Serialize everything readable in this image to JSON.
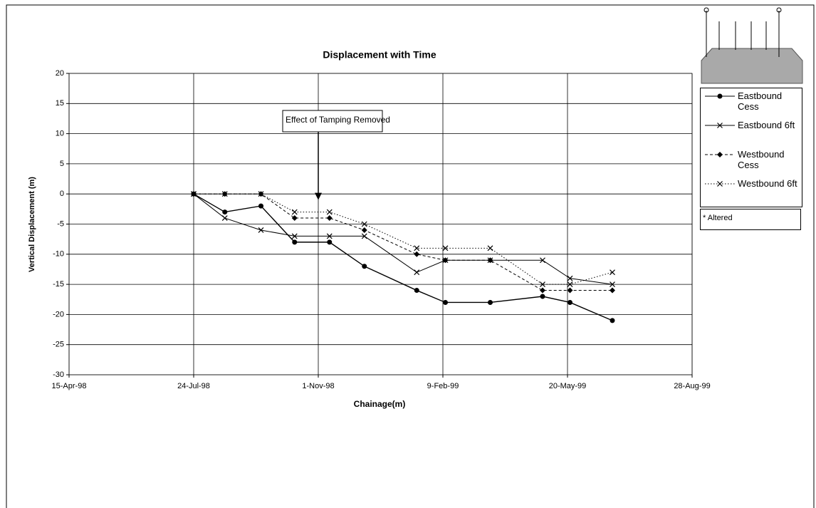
{
  "chart_data": {
    "type": "line",
    "title": "Displacement with Time",
    "x_label": "Chainage(m)",
    "y_label": "Vertical Displacement (m)",
    "x": [
      "1998-07-24",
      "1998-08-18",
      "1998-09-16",
      "1998-10-13",
      "1998-11-10",
      "1998-12-08",
      "1999-01-19",
      "1999-02-11",
      "1999-03-19",
      "1999-04-30",
      "1999-05-22",
      "1999-06-25"
    ],
    "series": [
      {
        "name": "Eastbound Cess",
        "color": "#000000",
        "dash": "solid",
        "marker": "circle",
        "values": [
          0,
          -3,
          -2,
          -8,
          -8,
          -12,
          -16,
          -18,
          -18,
          -17,
          -18,
          -21
        ]
      },
      {
        "name": "Eastbound 6ft",
        "color": "#000000",
        "dash": "solid",
        "marker": "x",
        "values": [
          0,
          -4,
          -6,
          -7,
          -7,
          -7,
          -13,
          -11,
          -11,
          -11,
          -14,
          -15
        ]
      },
      {
        "name": "Westbound Cess",
        "color": "#000000",
        "dash": "dashed",
        "marker": "diamond",
        "values": [
          0,
          0,
          0,
          -4,
          -4,
          -6,
          -10,
          -11,
          -11,
          -16,
          -16,
          -16
        ]
      },
      {
        "name": "Westbound 6ft",
        "color": "#000000",
        "dash": "dotted",
        "marker": "x",
        "values": [
          0,
          0,
          0,
          -3,
          -3,
          -5,
          -9,
          -9,
          -9,
          -15,
          -15,
          -13
        ]
      }
    ],
    "xlim": [
      "1998-04-15",
      "1999-08-28"
    ],
    "xticks": [
      {
        "value": "1998-04-15",
        "label": "15-Apr-98"
      },
      {
        "value": "1998-07-24",
        "label": "24-Jul-98"
      },
      {
        "value": "1998-11-01",
        "label": "1-Nov-98"
      },
      {
        "value": "1999-02-09",
        "label": "9-Feb-99"
      },
      {
        "value": "1999-05-20",
        "label": "20-May-99"
      },
      {
        "value": "1999-08-28",
        "label": "28-Aug-99"
      }
    ],
    "ylim": [
      -30,
      20
    ],
    "yticks": [
      -30,
      -25,
      -20,
      -15,
      -10,
      -5,
      0,
      5,
      10,
      15,
      20
    ],
    "grid": true,
    "legend": "right",
    "legend_note": "* Altered",
    "annotation": {
      "text": "Effect of Tamping Removed",
      "x": "1998-11-01",
      "y": -1
    }
  }
}
